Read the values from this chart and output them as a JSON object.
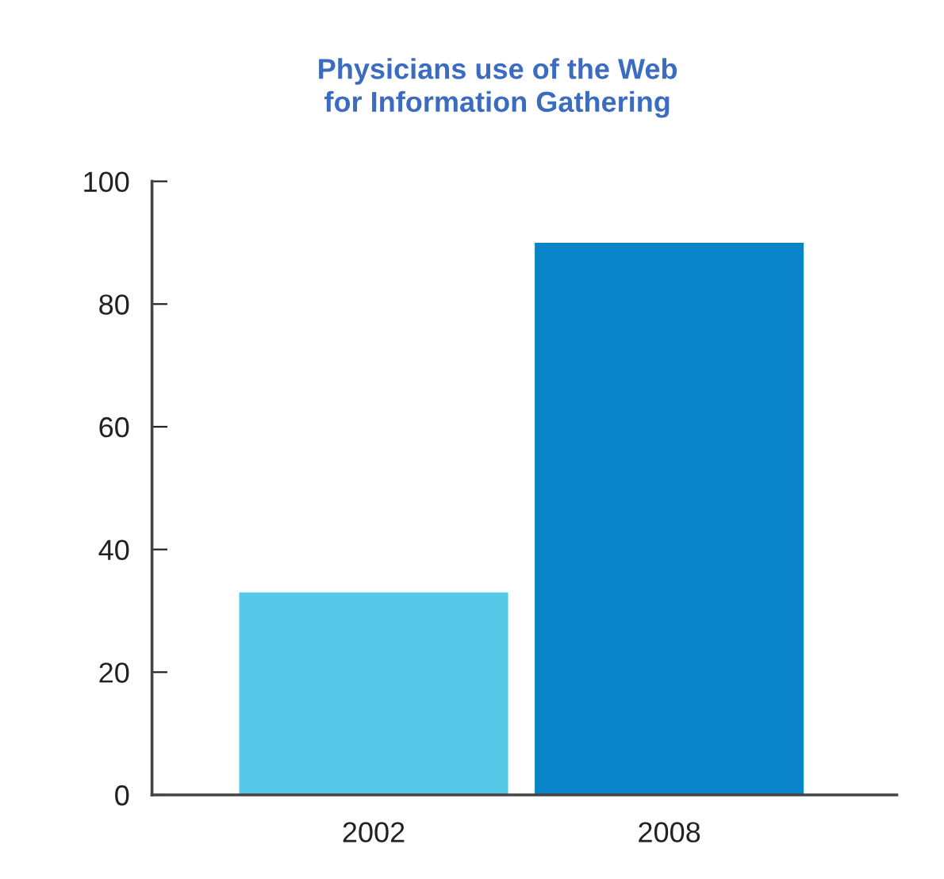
{
  "chart_data": {
    "type": "bar",
    "title": "Physicians use of the Web\nfor Information Gathering",
    "categories": [
      "2002",
      "2008"
    ],
    "values": [
      33,
      90
    ],
    "colors": [
      "#56c8e8",
      "#0a84c8"
    ],
    "ylim": [
      0,
      100
    ],
    "yticks": [
      0,
      20,
      40,
      60,
      80,
      100
    ],
    "grid": false,
    "legend": false
  }
}
